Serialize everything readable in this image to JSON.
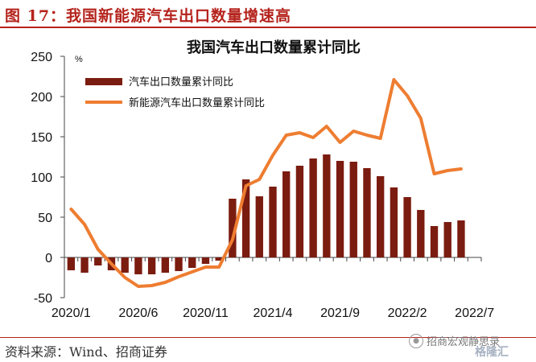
{
  "figure": {
    "title": "图 17：我国新能源汽车出口数量增速高",
    "source": "资料来源：Wind、招商证券",
    "watermark": "招商宏观静思录",
    "watermark_brand": "格隆汇"
  },
  "colors": {
    "bar": "#7b1c10",
    "line": "#ee7d31",
    "header_accent": "#b5231c"
  },
  "chart_data": {
    "type": "bar",
    "title": "我国汽车出口数量累计同比",
    "unit": "%",
    "ylim": [
      -50,
      250
    ],
    "yticks": [
      "250",
      "200",
      "150",
      "100",
      "50",
      "0",
      "-50"
    ],
    "ytick_values": [
      250,
      200,
      150,
      100,
      50,
      0,
      -50
    ],
    "xtick_labels": [
      "2020/1",
      "2020/6",
      "2020/11",
      "2021/4",
      "2021/9",
      "2022/2",
      "2022/7"
    ],
    "xtick_indices": [
      0,
      5,
      10,
      15,
      20,
      25,
      30
    ],
    "categories": [
      "2020/1",
      "2020/2",
      "2020/3",
      "2020/4",
      "2020/5",
      "2020/6",
      "2020/7",
      "2020/8",
      "2020/9",
      "2020/10",
      "2020/11",
      "2020/12",
      "2021/1",
      "2021/2",
      "2021/3",
      "2021/4",
      "2021/5",
      "2021/6",
      "2021/7",
      "2021/8",
      "2021/9",
      "2021/10",
      "2021/11",
      "2021/12",
      "2022/1",
      "2022/2",
      "2022/3",
      "2022/4",
      "2022/5",
      "2022/6",
      "2022/7"
    ],
    "legend_position": "top-left",
    "grid": false,
    "series": [
      {
        "name": "汽车出口数量累计同比",
        "kind": "bar",
        "values": [
          -16,
          -19,
          -10,
          -16,
          -19,
          -21,
          -21,
          -19,
          -17,
          -13,
          -8,
          -4,
          73,
          97,
          76,
          88,
          107,
          114,
          123,
          128,
          120,
          119,
          111,
          101,
          87,
          75,
          59,
          39,
          44,
          46,
          null
        ]
      },
      {
        "name": "新能源汽车出口数量累计同比",
        "kind": "line",
        "values": [
          60,
          41,
          10,
          -8,
          -25,
          -36,
          -35,
          -31,
          -24,
          -18,
          -12,
          -12,
          22,
          89,
          97,
          127,
          152,
          155,
          149,
          163,
          143,
          157,
          152,
          148,
          221,
          201,
          173,
          104,
          108,
          110,
          null
        ]
      }
    ]
  }
}
